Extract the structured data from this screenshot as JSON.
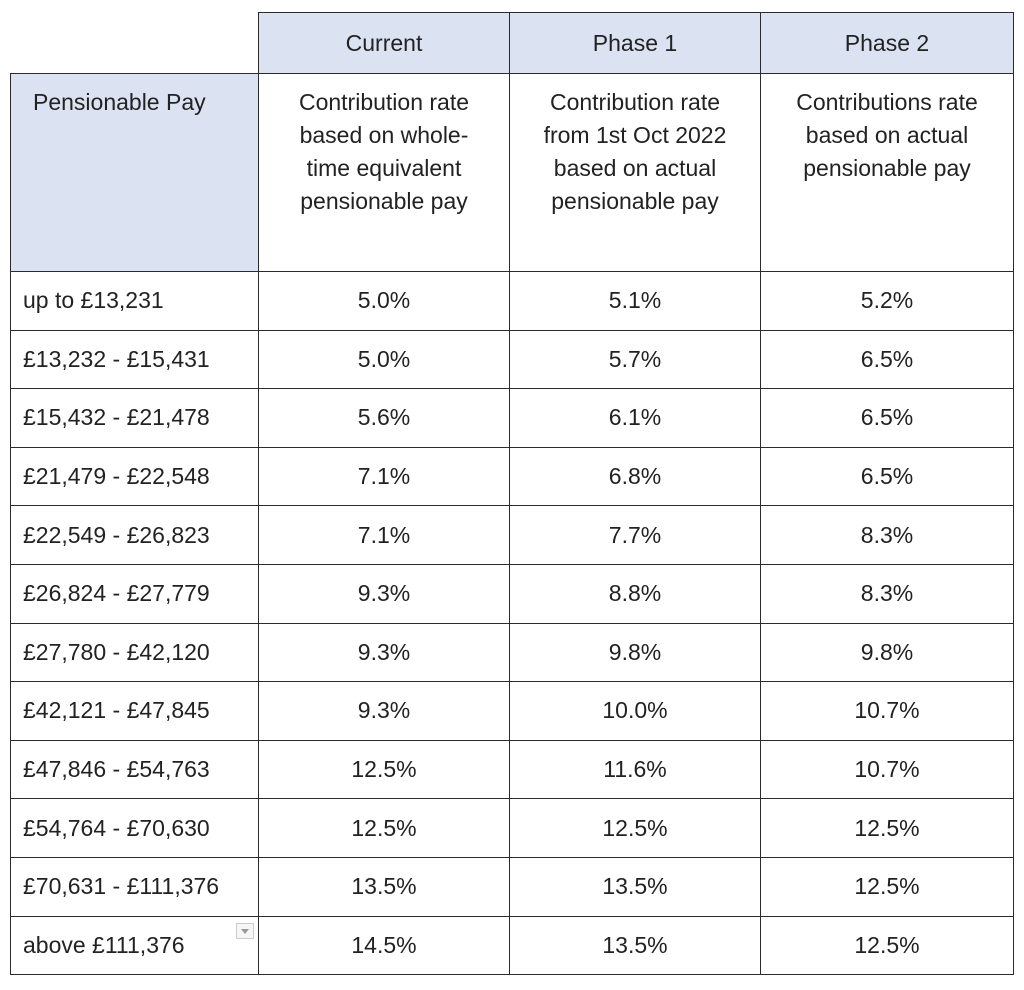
{
  "header": {
    "columns": [
      "Current",
      "Phase 1",
      "Phase 2"
    ],
    "row_label": "Pensionable Pay",
    "descriptions": [
      "Contribution rate based on whole-time equivalent pensionable pay",
      "Contribution rate from 1st Oct 2022 based on actual pensionable pay",
      "Contributions rate based on actual pensionable pay"
    ]
  },
  "table": {
    "rows": [
      [
        "up to £13,231",
        "5.0%",
        "5.1%",
        "5.2%"
      ],
      [
        "£13,232 - £15,431",
        "5.0%",
        "5.7%",
        "6.5%"
      ],
      [
        "£15,432 - £21,478",
        "5.6%",
        "6.1%",
        "6.5%"
      ],
      [
        "£21,479 - £22,548",
        "7.1%",
        "6.8%",
        "6.5%"
      ],
      [
        "£22,549 - £26,823",
        "7.1%",
        "7.7%",
        "8.3%"
      ],
      [
        "£26,824 - £27,779",
        "9.3%",
        "8.8%",
        "8.3%"
      ],
      [
        "£27,780 - £42,120",
        "9.3%",
        "9.8%",
        "9.8%"
      ],
      [
        "£42,121 - £47,845",
        "9.3%",
        "10.0%",
        "10.7%"
      ],
      [
        "£47,846 - £54,763",
        "12.5%",
        "11.6%",
        "10.7%"
      ],
      [
        "£54,764 - £70,630",
        "12.5%",
        "12.5%",
        "12.5%"
      ],
      [
        "£70,631 - £111,376",
        "13.5%",
        "13.5%",
        "12.5%"
      ],
      [
        "above £111,376",
        "14.5%",
        "13.5%",
        "12.5%"
      ]
    ]
  }
}
